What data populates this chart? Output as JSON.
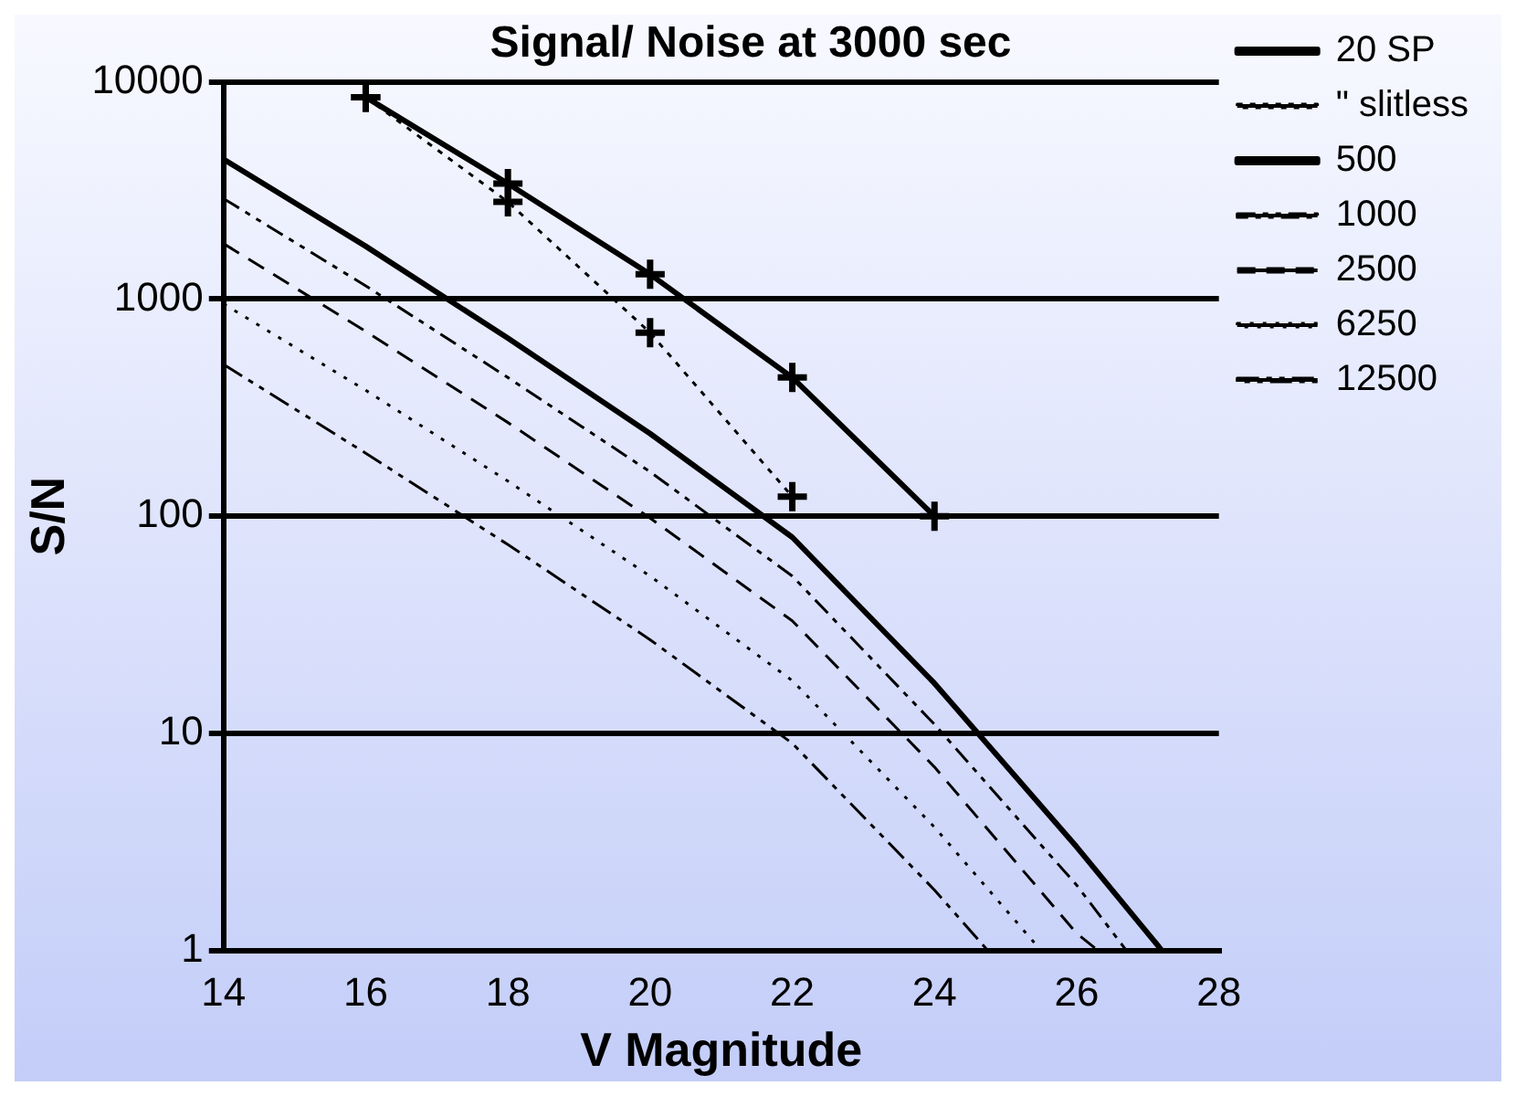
{
  "chart_data": {
    "type": "line",
    "title": "Signal/ Noise at 3000 sec",
    "xlabel": "V Magnitude",
    "ylabel": "S/N",
    "xlim": [
      14,
      28
    ],
    "xticks": [
      14,
      16,
      18,
      20,
      22,
      24,
      26,
      28
    ],
    "ylim": [
      1,
      10000
    ],
    "yticks": [
      1,
      10,
      100,
      1000,
      10000
    ],
    "log": "y",
    "grid": "y",
    "legend": "right",
    "series": [
      {
        "name": "20 SP",
        "color": "#000000",
        "marker": "cross",
        "line_style": "solid",
        "x": [
          16,
          18,
          20,
          22,
          24
        ],
        "values": [
          8500,
          3400,
          1300,
          435,
          100
        ]
      },
      {
        "name": "\" slitless",
        "color": "#000000",
        "marker": "cross",
        "line_style": "dotted",
        "x": [
          16,
          18,
          20,
          22
        ],
        "values": [
          8500,
          2800,
          700,
          123
        ]
      },
      {
        "name": "500",
        "color": "#000000",
        "marker": "none",
        "line_style": "solid",
        "x": [
          14,
          16,
          18,
          20,
          22,
          24,
          26,
          27.2
        ],
        "values": [
          4400,
          1750,
          660,
          240,
          80,
          17,
          3,
          1
        ]
      },
      {
        "name": "1000",
        "color": "#000000",
        "marker": "none",
        "line_style": "dashed",
        "x": [
          14,
          16,
          18,
          20,
          22,
          24,
          26,
          26.7
        ],
        "values": [
          2900,
          1150,
          435,
          160,
          53,
          11,
          2,
          1
        ]
      },
      {
        "name": "2500",
        "color": "#000000",
        "marker": "none",
        "line_style": "dashed",
        "x": [
          14,
          16,
          18,
          20,
          22,
          24,
          26,
          26.3
        ],
        "values": [
          1800,
          710,
          270,
          98,
          33,
          7,
          1.2,
          1
        ]
      },
      {
        "name": "6250",
        "color": "#000000",
        "marker": "none",
        "line_style": "dotted",
        "x": [
          14,
          16,
          18,
          20,
          22,
          24,
          25.5
        ],
        "values": [
          950,
          380,
          145,
          53,
          17.5,
          3.7,
          1
        ]
      },
      {
        "name": "12500",
        "color": "#000000",
        "marker": "none",
        "line_style": "dashed",
        "x": [
          14,
          16,
          18,
          20,
          22,
          24,
          24.75
        ],
        "values": [
          500,
          195,
          74,
          27,
          9,
          1.9,
          1
        ]
      }
    ]
  }
}
